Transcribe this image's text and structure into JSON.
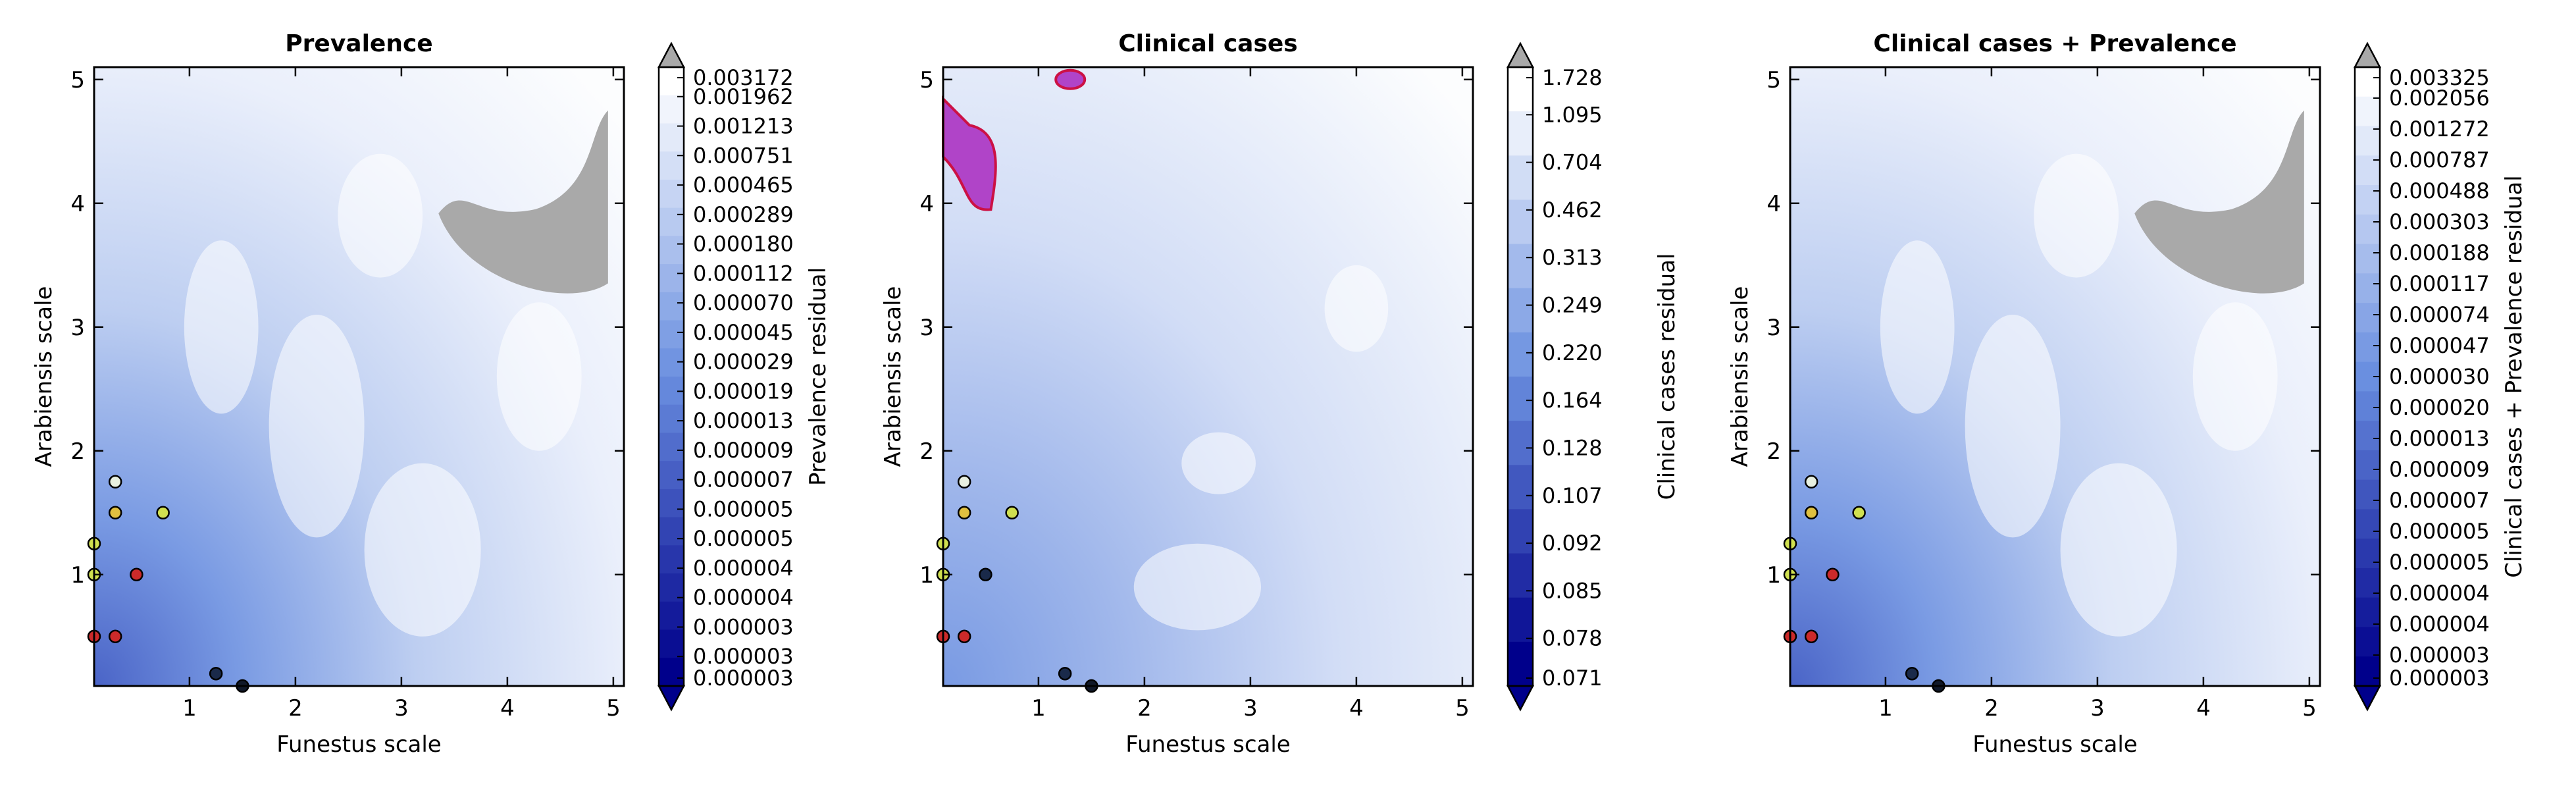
{
  "chart_data": [
    {
      "type": "heatmap",
      "title": "Prevalence",
      "xlabel": "Funestus scale",
      "ylabel": "Arabiensis scale",
      "xlim": [
        0.1,
        5.1
      ],
      "ylim": [
        0.1,
        5.1
      ],
      "xticks": [
        "1",
        "2",
        "3",
        "4",
        "5"
      ],
      "yticks": [
        "1",
        "2",
        "3",
        "4",
        "5"
      ],
      "colorbar_label": "Prevalence residual",
      "colorbar_ticks": [
        "0.003172",
        "0.001962",
        "0.001213",
        "0.000751",
        "0.000465",
        "0.000289",
        "0.000180",
        "0.000112",
        "0.000070",
        "0.000045",
        "0.000029",
        "0.000019",
        "0.000013",
        "0.000009",
        "0.000007",
        "0.000005",
        "0.000005",
        "0.000004",
        "0.000004",
        "0.000003",
        "0.000003",
        "0.000003"
      ],
      "masked_color": "#a9a9a9",
      "masked_region": {
        "x": [
          3.35,
          4.95
        ],
        "y": [
          3.3,
          4.75
        ]
      },
      "contour_region": null,
      "points": [
        {
          "x": 0.3,
          "y": 1.75,
          "color": "#e8f0e0"
        },
        {
          "x": 0.3,
          "y": 1.5,
          "color": "#e0c040"
        },
        {
          "x": 0.75,
          "y": 1.5,
          "color": "#d0e050"
        },
        {
          "x": 0.1,
          "y": 1.25,
          "color": "#d0e050"
        },
        {
          "x": 0.1,
          "y": 1.0,
          "color": "#d0e050"
        },
        {
          "x": 0.5,
          "y": 1.0,
          "color": "#cc2a2a"
        },
        {
          "x": 0.1,
          "y": 0.5,
          "color": "#cc2a2a"
        },
        {
          "x": 0.3,
          "y": 0.5,
          "color": "#cc2a2a"
        },
        {
          "x": 1.25,
          "y": 0.2,
          "color": "#1a2a4a"
        },
        {
          "x": 1.5,
          "y": 0.1,
          "color": "#101828"
        }
      ]
    },
    {
      "type": "heatmap",
      "title": "Clinical cases",
      "xlabel": "Funestus scale",
      "ylabel": "Arabiensis scale",
      "xlim": [
        0.1,
        5.1
      ],
      "ylim": [
        0.1,
        5.1
      ],
      "xticks": [
        "1",
        "2",
        "3",
        "4",
        "5"
      ],
      "yticks": [
        "1",
        "2",
        "3",
        "4",
        "5"
      ],
      "colorbar_label": "Clinical cases residual",
      "colorbar_ticks": [
        "1.728",
        "1.095",
        "0.704",
        "0.462",
        "0.313",
        "0.249",
        "0.220",
        "0.164",
        "0.128",
        "0.107",
        "0.092",
        "0.085",
        "0.078",
        "0.071"
      ],
      "masked_color": null,
      "masked_region": null,
      "contour_region": {
        "x": [
          0.1,
          0.55
        ],
        "y": [
          3.95,
          4.95
        ],
        "color": "#b044c8",
        "edge": "#cc1144"
      },
      "points": [
        {
          "x": 0.3,
          "y": 1.75,
          "color": "#e8f0e0"
        },
        {
          "x": 0.3,
          "y": 1.5,
          "color": "#e0c040"
        },
        {
          "x": 0.75,
          "y": 1.5,
          "color": "#d0e050"
        },
        {
          "x": 0.1,
          "y": 1.25,
          "color": "#d0e050"
        },
        {
          "x": 0.1,
          "y": 1.0,
          "color": "#d0e050"
        },
        {
          "x": 0.5,
          "y": 1.0,
          "color": "#1a2a4a"
        },
        {
          "x": 0.1,
          "y": 0.5,
          "color": "#cc2a2a"
        },
        {
          "x": 0.3,
          "y": 0.5,
          "color": "#cc2a2a"
        },
        {
          "x": 1.25,
          "y": 0.2,
          "color": "#1a2a4a"
        },
        {
          "x": 1.5,
          "y": 0.1,
          "color": "#101828"
        }
      ]
    },
    {
      "type": "heatmap",
      "title": "Clinical cases + Prevalence",
      "xlabel": "Funestus scale",
      "ylabel": "Arabiensis scale",
      "xlim": [
        0.1,
        5.1
      ],
      "ylim": [
        0.1,
        5.1
      ],
      "xticks": [
        "1",
        "2",
        "3",
        "4",
        "5"
      ],
      "yticks": [
        "1",
        "2",
        "3",
        "4",
        "5"
      ],
      "colorbar_label": "Clinical cases + Prevalence residual",
      "colorbar_ticks": [
        "0.003325",
        "0.002056",
        "0.001272",
        "0.000787",
        "0.000488",
        "0.000303",
        "0.000188",
        "0.000117",
        "0.000074",
        "0.000047",
        "0.000030",
        "0.000020",
        "0.000013",
        "0.000009",
        "0.000007",
        "0.000005",
        "0.000005",
        "0.000004",
        "0.000004",
        "0.000003",
        "0.000003"
      ],
      "masked_color": "#a9a9a9",
      "masked_region": {
        "x": [
          3.35,
          4.95
        ],
        "y": [
          3.3,
          4.75
        ]
      },
      "contour_region": null,
      "points": [
        {
          "x": 0.3,
          "y": 1.75,
          "color": "#e8f0e0"
        },
        {
          "x": 0.3,
          "y": 1.5,
          "color": "#e0c040"
        },
        {
          "x": 0.75,
          "y": 1.5,
          "color": "#d0e050"
        },
        {
          "x": 0.1,
          "y": 1.25,
          "color": "#d0e050"
        },
        {
          "x": 0.1,
          "y": 1.0,
          "color": "#d0e050"
        },
        {
          "x": 0.5,
          "y": 1.0,
          "color": "#cc2a2a"
        },
        {
          "x": 0.1,
          "y": 0.5,
          "color": "#cc2a2a"
        },
        {
          "x": 0.3,
          "y": 0.5,
          "color": "#cc2a2a"
        },
        {
          "x": 1.25,
          "y": 0.2,
          "color": "#1a2a4a"
        },
        {
          "x": 1.5,
          "y": 0.1,
          "color": "#101828"
        }
      ]
    }
  ],
  "colors": {
    "cmap_low": "#00008b",
    "cmap_mid": "#6a8fe0",
    "cmap_high": "#ffffff",
    "over_color": "#a9a9a9"
  }
}
